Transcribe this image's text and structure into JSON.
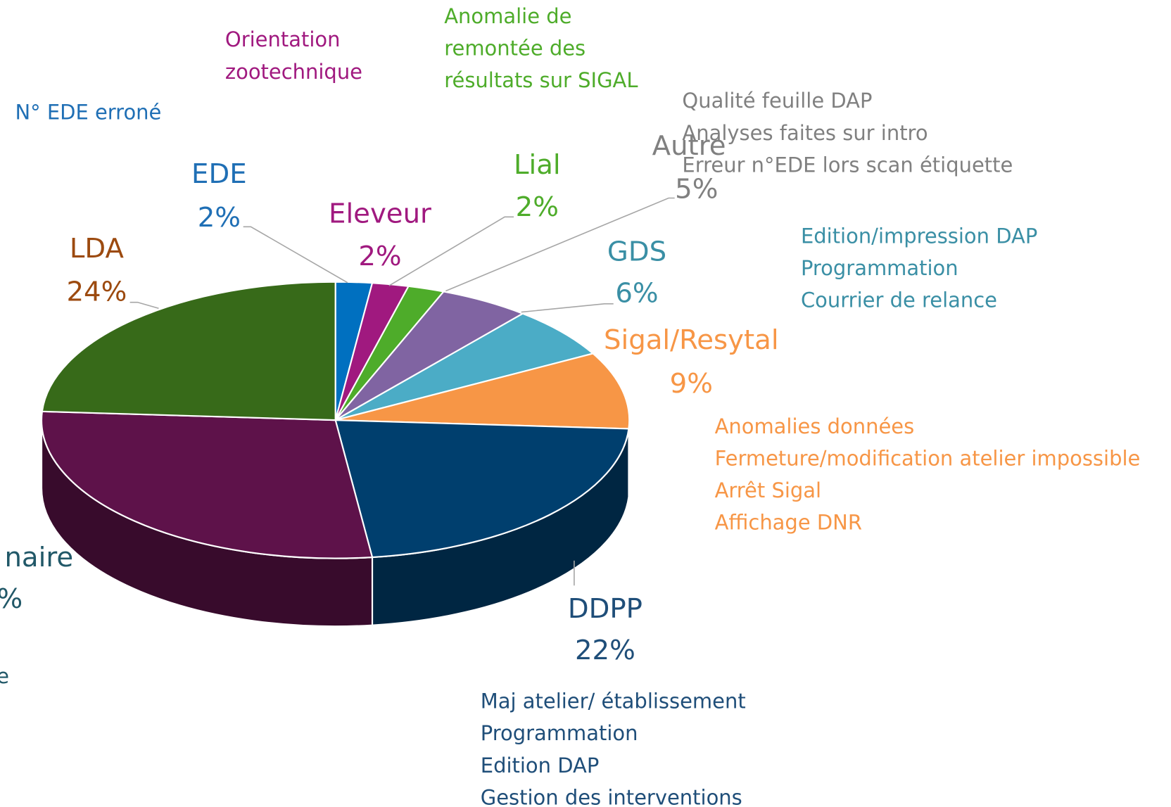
{
  "chart_data": {
    "type": "pie",
    "categories": [
      "EDE",
      "Eleveur",
      "Lial",
      "Autre",
      "GDS",
      "Sigal/Resytal",
      "DDPP",
      "naire",
      "LDA"
    ],
    "values": [
      2,
      2,
      2,
      5,
      6,
      9,
      22,
      28,
      24
    ],
    "value_labels": [
      "2%",
      "2%",
      "2%",
      "5%",
      "6%",
      "9%",
      "22%",
      "%",
      "24%"
    ],
    "colors": [
      "#0070c0",
      "#a0197f",
      "#4eac2a",
      "#8064a2",
      "#4bacc6",
      "#f79646",
      "#003f6e",
      "#5e124a",
      "#376a19"
    ],
    "label_colors": [
      "#1f6fb5",
      "#a0197f",
      "#4eac2a",
      "#808080",
      "#3a8fa5",
      "#f79646",
      "#1f4e79",
      "#215868",
      "#9c4a0f"
    ],
    "details": [
      [
        "N° EDE erroné"
      ],
      [
        "Orientation",
        "zootechnique"
      ],
      [
        "Anomalie de",
        "remontée des",
        "résultats sur SIGAL"
      ],
      [
        "Qualité feuille DAP",
        "Analyses faites sur intro",
        "Erreur n°EDE lors scan étiquette"
      ],
      [
        "Edition/impression DAP",
        "Programmation",
        "Courrier de relance"
      ],
      [
        "Anomalies données",
        "Fermeture/modification atelier impossible",
        "Arrêt Sigal",
        "Affichage DNR"
      ],
      [
        "Maj atelier/ établissement",
        "Programmation",
        "Edition DAP",
        "Gestion des interventions"
      ],
      [
        "e"
      ],
      []
    ]
  }
}
